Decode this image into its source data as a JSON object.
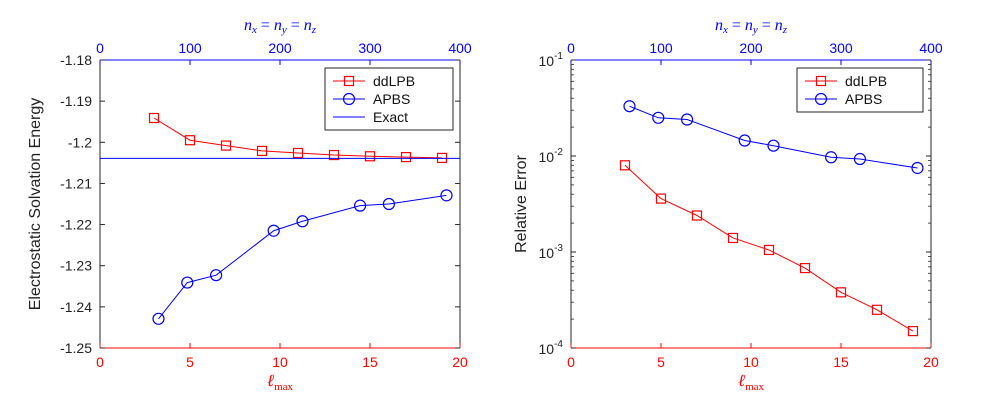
{
  "colors": {
    "red": "#ff0000",
    "blue": "#0000ff",
    "axis": "#262626",
    "legend_bg": "#ffffff"
  },
  "chart_data": [
    {
      "type": "line",
      "ylabel": "Electrostatic Solvation Energy",
      "xlabel_bottom": "ℓmax",
      "xlabel_top": "nx = ny = nz",
      "xlim": [
        0,
        20
      ],
      "xlim_top": [
        0,
        400
      ],
      "ylim": [
        -1.25,
        -1.18
      ],
      "xticks": [
        0,
        5,
        10,
        15,
        20
      ],
      "xtick_labels": [
        "0",
        "5",
        "10",
        "15",
        "20"
      ],
      "xticks_top": [
        0,
        100,
        200,
        300,
        400
      ],
      "xtick_labels_top": [
        "0",
        "100",
        "200",
        "300",
        "400"
      ],
      "yticks": [
        -1.25,
        -1.24,
        -1.23,
        -1.22,
        -1.21,
        -1.2,
        -1.19,
        -1.18
      ],
      "ytick_labels": [
        "-1.25",
        "-1.24",
        "-1.23",
        "-1.22",
        "-1.21",
        "-1.2",
        "-1.19",
        "-1.18"
      ],
      "legend": {
        "position": "top-right",
        "entries": [
          "ddLPB",
          "APBS",
          "Exact"
        ]
      },
      "series": [
        {
          "name": "ddLPB",
          "axis": "bottom",
          "marker": "square",
          "color": "#ff0000",
          "x": [
            3,
            5,
            7,
            9,
            11,
            13,
            15,
            17,
            19
          ],
          "y": [
            -1.1941,
            -1.1995,
            -1.2008,
            -1.2021,
            -1.2026,
            -1.2031,
            -1.2034,
            -1.2036,
            -1.2038
          ]
        },
        {
          "name": "APBS",
          "axis": "top",
          "marker": "circle",
          "color": "#0000ff",
          "x": [
            65,
            97,
            129,
            193,
            225,
            289,
            321,
            385
          ],
          "y": [
            -1.2429,
            -1.2341,
            -1.2323,
            -1.2215,
            -1.2192,
            -1.2154,
            -1.215,
            -1.2129
          ]
        },
        {
          "name": "Exact",
          "marker": "none",
          "color": "#0000ff",
          "hline": -1.2039
        }
      ]
    },
    {
      "type": "line",
      "ylabel": "Relative Error",
      "yscale": "log",
      "xlabel_bottom": "ℓmax",
      "xlabel_top": "nx = ny = nz",
      "xlim": [
        0,
        20
      ],
      "xlim_top": [
        0,
        400
      ],
      "ylim": [
        0.0001,
        0.1
      ],
      "xticks": [
        0,
        5,
        10,
        15,
        20
      ],
      "xtick_labels": [
        "0",
        "5",
        "10",
        "15",
        "20"
      ],
      "xticks_top": [
        0,
        100,
        200,
        300,
        400
      ],
      "xtick_labels_top": [
        "0",
        "100",
        "200",
        "300",
        "400"
      ],
      "yticks": [
        0.0001,
        0.001,
        0.01,
        0.1
      ],
      "ytick_labels": [
        [
          "10",
          "-4"
        ],
        [
          "10",
          "-3"
        ],
        [
          "10",
          "-2"
        ],
        [
          "10",
          "-1"
        ]
      ],
      "legend": {
        "position": "top-right",
        "entries": [
          "ddLPB",
          "APBS"
        ]
      },
      "series": [
        {
          "name": "ddLPB",
          "axis": "bottom",
          "marker": "square",
          "color": "#ff0000",
          "x": [
            3,
            5,
            7,
            9,
            11,
            13,
            15,
            17,
            19
          ],
          "y": [
            0.008,
            0.0036,
            0.0024,
            0.0014,
            0.00105,
            0.00068,
            0.00038,
            0.00025,
            0.00015
          ]
        },
        {
          "name": "APBS",
          "axis": "top",
          "marker": "circle",
          "color": "#0000ff",
          "x": [
            65,
            97,
            129,
            193,
            225,
            289,
            321,
            385
          ],
          "y": [
            0.033,
            0.025,
            0.024,
            0.0145,
            0.0128,
            0.0097,
            0.0093,
            0.0075
          ]
        }
      ]
    }
  ]
}
